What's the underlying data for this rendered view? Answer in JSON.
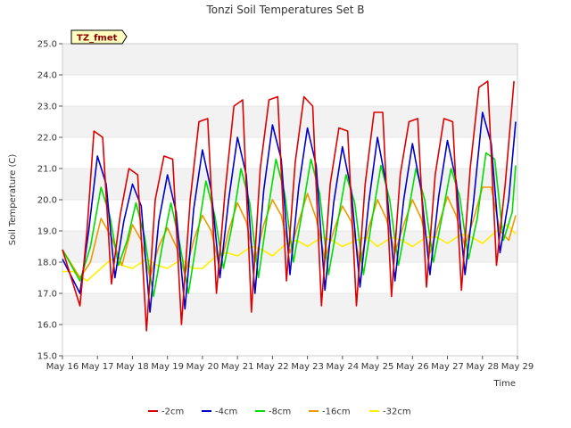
{
  "chart_data": {
    "type": "line",
    "title": "Tonzi Soil Temperatures Set B",
    "xlabel": "Time",
    "ylabel": "Soil Temperature (C)",
    "station_label": "TZ_fmet",
    "xlim": [
      16,
      29
    ],
    "ylim": [
      15.0,
      25.0
    ],
    "y_ticks": [
      15.0,
      16.0,
      17.0,
      18.0,
      19.0,
      20.0,
      21.0,
      22.0,
      23.0,
      24.0,
      25.0
    ],
    "y_tick_labels": [
      "15.0",
      "16.0",
      "17.0",
      "18.0",
      "19.0",
      "20.0",
      "21.0",
      "22.0",
      "23.0",
      "24.0",
      "25.0"
    ],
    "x_ticks": [
      16,
      17,
      18,
      19,
      20,
      21,
      22,
      23,
      24,
      25,
      26,
      27,
      28,
      29
    ],
    "x_tick_labels": [
      "May 16",
      "May 17",
      "May 18",
      "May 19",
      "May 20",
      "May 21",
      "May 22",
      "May 23",
      "May 24",
      "May 25",
      "May 26",
      "May 27",
      "May 28",
      "May 29"
    ],
    "grid": "horizontal bands",
    "legend_position": "bottom",
    "series": [
      {
        "name": "-2cm",
        "color": "#dd0000",
        "x": [
          16.0,
          16.5,
          16.7,
          16.9,
          17.15,
          17.4,
          17.65,
          17.9,
          18.15,
          18.4,
          18.65,
          18.9,
          19.15,
          19.4,
          19.65,
          19.9,
          20.15,
          20.4,
          20.65,
          20.9,
          21.15,
          21.4,
          21.65,
          21.9,
          22.15,
          22.4,
          22.65,
          22.9,
          23.15,
          23.4,
          23.65,
          23.9,
          24.15,
          24.4,
          24.65,
          24.9,
          25.15,
          25.4,
          25.65,
          25.9,
          26.15,
          26.4,
          26.65,
          26.9,
          27.15,
          27.4,
          27.65,
          27.9,
          28.15,
          28.4,
          28.65,
          28.9
        ],
        "y": [
          18.4,
          16.6,
          19.0,
          22.2,
          22.0,
          17.3,
          19.5,
          21.0,
          20.8,
          15.8,
          20.0,
          21.4,
          21.3,
          16.0,
          20.0,
          22.5,
          22.6,
          17.0,
          20.3,
          23.0,
          23.2,
          16.4,
          21.0,
          23.2,
          23.3,
          17.4,
          21.2,
          23.3,
          23.0,
          16.6,
          20.5,
          22.3,
          22.2,
          16.6,
          20.5,
          22.8,
          22.8,
          16.9,
          20.8,
          22.5,
          22.6,
          17.2,
          20.8,
          22.6,
          22.5,
          17.1,
          21.0,
          23.6,
          23.8,
          17.9,
          20.5,
          23.8
        ]
      },
      {
        "name": "-4cm",
        "color": "#0000cc",
        "x": [
          16.0,
          16.5,
          16.75,
          17.0,
          17.25,
          17.5,
          17.75,
          18.0,
          18.25,
          18.5,
          18.75,
          19.0,
          19.25,
          19.5,
          19.75,
          20.0,
          20.25,
          20.5,
          20.75,
          21.0,
          21.25,
          21.5,
          21.75,
          22.0,
          22.25,
          22.5,
          22.75,
          23.0,
          23.25,
          23.5,
          23.75,
          24.0,
          24.25,
          24.5,
          24.75,
          25.0,
          25.25,
          25.5,
          25.75,
          26.0,
          26.25,
          26.5,
          26.75,
          27.0,
          27.25,
          27.5,
          27.75,
          28.0,
          28.25,
          28.5,
          28.75,
          28.95
        ],
        "y": [
          18.1,
          17.0,
          19.0,
          21.4,
          20.5,
          17.5,
          19.3,
          20.5,
          19.8,
          16.4,
          19.3,
          20.8,
          19.6,
          16.5,
          19.7,
          21.6,
          20.3,
          17.5,
          20.0,
          22.0,
          20.8,
          17.0,
          20.3,
          22.4,
          21.3,
          17.6,
          20.4,
          22.3,
          21.1,
          17.1,
          19.9,
          21.7,
          20.3,
          17.2,
          19.9,
          22.0,
          20.5,
          17.4,
          20.0,
          21.8,
          20.3,
          17.6,
          20.1,
          21.9,
          20.6,
          17.6,
          20.0,
          22.8,
          21.8,
          18.3,
          20.0,
          22.5
        ]
      },
      {
        "name": "-8cm",
        "color": "#00dd00",
        "x": [
          16.0,
          16.5,
          16.8,
          17.1,
          17.35,
          17.6,
          17.85,
          18.1,
          18.35,
          18.6,
          18.85,
          19.1,
          19.35,
          19.6,
          19.85,
          20.1,
          20.35,
          20.6,
          20.85,
          21.1,
          21.35,
          21.6,
          21.85,
          22.1,
          22.35,
          22.6,
          22.85,
          23.1,
          23.35,
          23.6,
          23.85,
          24.1,
          24.35,
          24.6,
          24.85,
          25.1,
          25.35,
          25.6,
          25.85,
          26.1,
          26.35,
          26.6,
          26.85,
          27.1,
          27.35,
          27.6,
          27.85,
          28.1,
          28.35,
          28.6,
          28.85,
          28.95
        ],
        "y": [
          18.4,
          17.4,
          18.5,
          20.4,
          19.5,
          17.9,
          18.7,
          19.9,
          18.8,
          16.9,
          18.5,
          19.9,
          18.6,
          17.0,
          18.8,
          20.6,
          19.5,
          17.8,
          19.2,
          21.0,
          19.9,
          17.5,
          19.5,
          21.3,
          20.2,
          18.0,
          19.6,
          21.3,
          20.2,
          17.6,
          19.2,
          20.8,
          19.9,
          17.6,
          19.4,
          21.1,
          20.0,
          17.9,
          19.4,
          21.0,
          20.0,
          18.0,
          19.5,
          21.0,
          20.1,
          18.1,
          19.4,
          21.5,
          21.3,
          18.7,
          19.6,
          21.1
        ]
      },
      {
        "name": "-16cm",
        "color": "#ee9900",
        "x": [
          16.0,
          16.5,
          16.8,
          17.1,
          17.4,
          17.7,
          18.0,
          18.25,
          18.5,
          18.75,
          19.0,
          19.25,
          19.5,
          19.75,
          20.0,
          20.25,
          20.5,
          20.75,
          21.0,
          21.25,
          21.5,
          21.75,
          22.0,
          22.25,
          22.5,
          22.75,
          23.0,
          23.25,
          23.5,
          23.75,
          24.0,
          24.25,
          24.5,
          24.75,
          25.0,
          25.25,
          25.5,
          25.75,
          26.0,
          26.25,
          26.5,
          26.75,
          27.0,
          27.25,
          27.5,
          27.75,
          28.0,
          28.25,
          28.5,
          28.75,
          28.95
        ],
        "y": [
          18.4,
          17.5,
          18.0,
          19.4,
          18.8,
          17.9,
          19.2,
          18.7,
          17.5,
          18.5,
          19.1,
          18.5,
          17.6,
          18.7,
          19.5,
          19.0,
          17.8,
          19.0,
          19.9,
          19.3,
          18.0,
          19.2,
          20.0,
          19.5,
          18.3,
          19.3,
          20.2,
          19.4,
          18.1,
          19.0,
          19.8,
          19.3,
          18.0,
          19.1,
          20.0,
          19.4,
          18.3,
          19.2,
          20.0,
          19.4,
          18.3,
          19.2,
          20.1,
          19.5,
          18.5,
          19.4,
          20.4,
          20.4,
          19.0,
          18.7,
          19.5
        ]
      },
      {
        "name": "-32cm",
        "color": "#ffee00",
        "x": [
          16.0,
          16.3,
          16.7,
          17.0,
          17.4,
          17.7,
          18.0,
          18.4,
          18.7,
          19.0,
          19.4,
          19.7,
          20.0,
          20.4,
          20.7,
          21.0,
          21.4,
          21.7,
          22.0,
          22.4,
          22.7,
          23.0,
          23.4,
          23.7,
          24.0,
          24.4,
          24.7,
          25.0,
          25.4,
          25.7,
          26.0,
          26.4,
          26.7,
          27.0,
          27.4,
          27.7,
          28.0,
          28.4,
          28.7,
          28.95
        ],
        "y": [
          17.7,
          17.7,
          17.4,
          17.7,
          18.1,
          17.9,
          17.8,
          18.1,
          17.9,
          17.8,
          18.1,
          17.8,
          17.8,
          18.2,
          18.3,
          18.2,
          18.5,
          18.4,
          18.2,
          18.6,
          18.7,
          18.5,
          18.8,
          18.7,
          18.5,
          18.7,
          18.8,
          18.5,
          18.8,
          18.7,
          18.5,
          18.8,
          18.8,
          18.6,
          18.9,
          18.8,
          18.6,
          19.0,
          19.2,
          18.9
        ]
      }
    ]
  }
}
